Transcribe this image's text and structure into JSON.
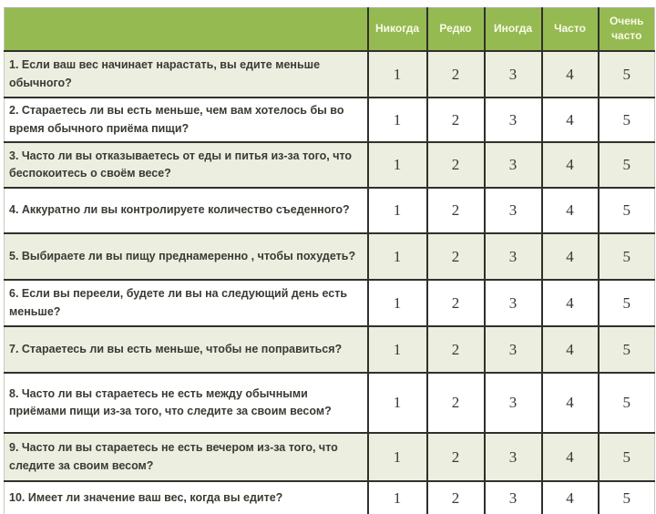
{
  "table": {
    "corner": "",
    "columns": [
      "Никогда",
      "Редко",
      "Иногда",
      "Часто",
      "Очень часто"
    ],
    "rows": [
      {
        "question": "1. Если ваш вес начинает нарастать, вы едите меньше обычного?",
        "values": [
          "1",
          "2",
          "3",
          "4",
          "5"
        ]
      },
      {
        "question": "2. Стараетесь ли вы есть меньше, чем вам хотелось бы во время обычного приёма пищи?",
        "values": [
          "1",
          "2",
          "3",
          "4",
          "5"
        ]
      },
      {
        "question": "3. Часто ли вы отказываетесь от еды и питья из-за того, что беспокоитесь о своём весе?",
        "values": [
          "1",
          "2",
          "3",
          "4",
          "5"
        ]
      },
      {
        "question": "4. Аккуратно ли вы контролируете количество съеденного?",
        "values": [
          "1",
          "2",
          "3",
          "4",
          "5"
        ]
      },
      {
        "question": "5. Выбираете ли вы пищу преднамеренно , чтобы похудеть?",
        "values": [
          "1",
          "2",
          "3",
          "4",
          "5"
        ]
      },
      {
        "question": "6. Если вы переели, будете ли вы на следующий день есть меньше?",
        "values": [
          "1",
          "2",
          "3",
          "4",
          "5"
        ]
      },
      {
        "question": "7. Стараетесь ли вы есть меньше, чтобы не поправиться?",
        "values": [
          "1",
          "2",
          "3",
          "4",
          "5"
        ]
      },
      {
        "question": "8. Часто ли вы стараетесь не есть между обычными приёмами пищи из-за того, что следите за своим весом?",
        "values": [
          "1",
          "2",
          "3",
          "4",
          "5"
        ]
      },
      {
        "question": "9. Часто ли вы стараетесь не есть вечером из-за того, что следите за своим весом?",
        "values": [
          "1",
          "2",
          "3",
          "4",
          "5"
        ]
      },
      {
        "question": "10. Имеет ли значение ваш вес, когда вы едите?",
        "values": [
          "1",
          "2",
          "3",
          "4",
          "5"
        ]
      }
    ]
  },
  "colors": {
    "header_bg": "#95ba52",
    "header_text": "#fafae8",
    "band_row_bg": "#eceee0",
    "plain_row_bg": "#ffffff",
    "border": "#31302b",
    "question_text": "#3b3a34"
  }
}
